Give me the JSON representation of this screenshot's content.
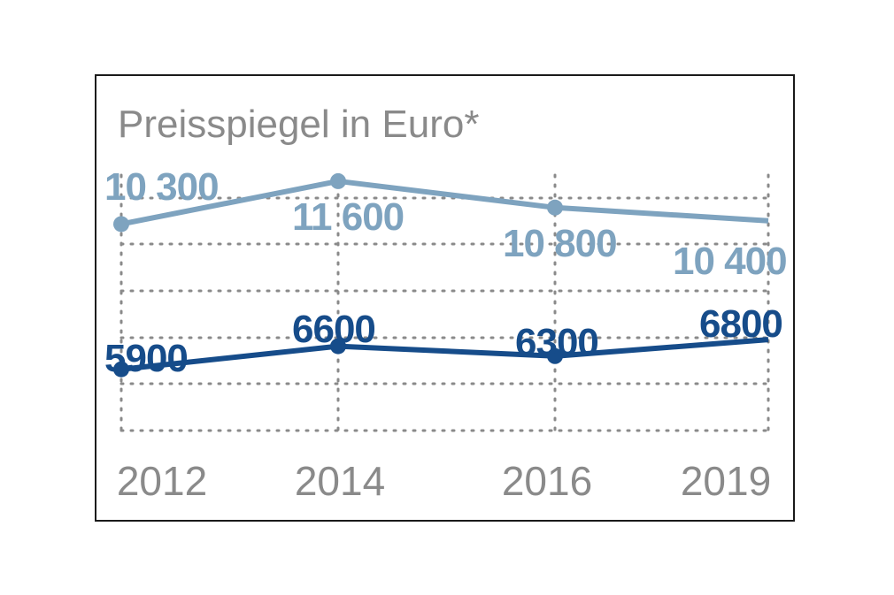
{
  "chart_data": {
    "type": "line",
    "title": "Preisspiegel in Euro*",
    "categories": [
      "2012",
      "2014",
      "2016",
      "2019"
    ],
    "x": [
      2012,
      2014,
      2016,
      2019
    ],
    "ylim": [
      4500,
      12000
    ],
    "grid": true,
    "colors": {
      "light": "#7ea3bf",
      "dark": "#164c8a",
      "text": "#8a8a8a"
    },
    "series": [
      {
        "name": "light",
        "values": [
          10300,
          11600,
          10800,
          10400
        ],
        "labels": [
          "10 300",
          "11 600",
          "10 800",
          "10 400"
        ]
      },
      {
        "name": "dark",
        "values": [
          5900,
          6600,
          6300,
          6800
        ],
        "labels": [
          "5900",
          "6600",
          "6300",
          "6800"
        ]
      }
    ]
  }
}
